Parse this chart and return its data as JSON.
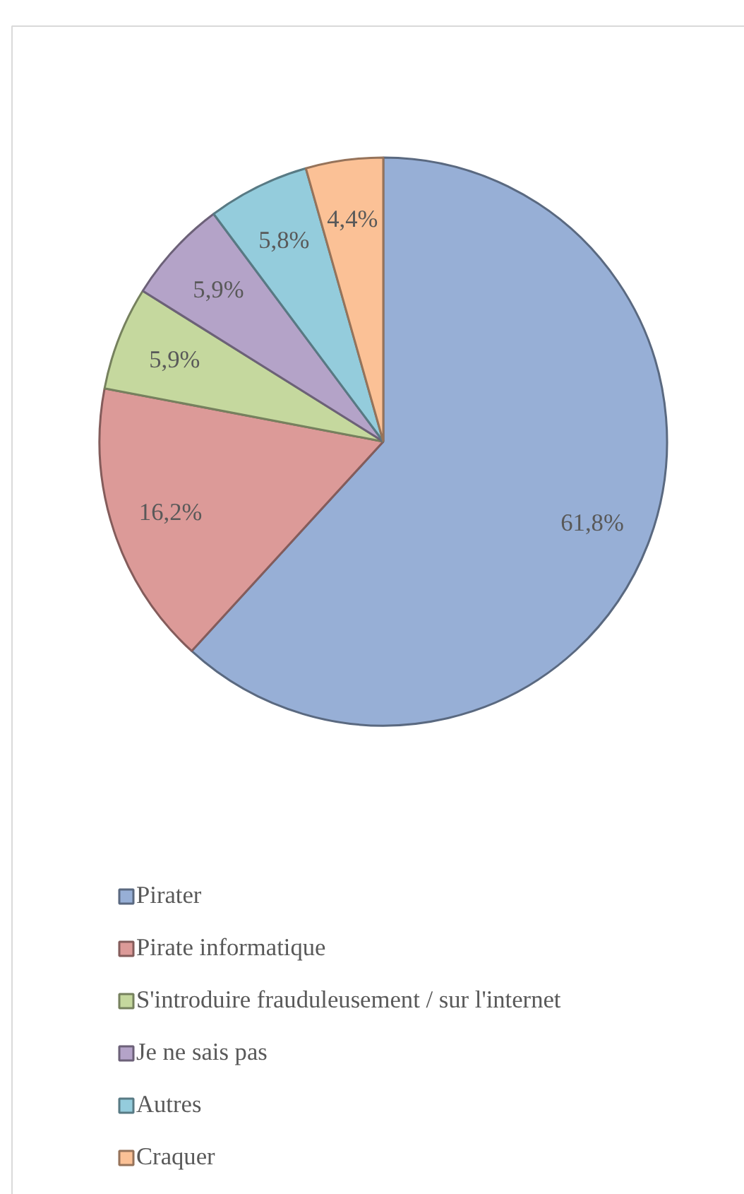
{
  "chart_data": {
    "type": "pie",
    "categories": [
      "Pirater",
      "Pirate informatique",
      "S'introduire frauduleusement / sur l'internet",
      "Je ne sais pas",
      "Autres",
      "Craquer"
    ],
    "values": [
      61.8,
      16.2,
      5.9,
      5.9,
      5.8,
      4.4
    ],
    "colors": [
      "#97afd6",
      "#dc9a98",
      "#c5d89e",
      "#b4a3c8",
      "#94ccdc",
      "#fbc196"
    ],
    "value_labels": [
      "61,8%",
      "16,2%",
      "5,9%",
      "5,9%",
      "5,8%",
      "4,4%"
    ],
    "legend": "bottom"
  }
}
